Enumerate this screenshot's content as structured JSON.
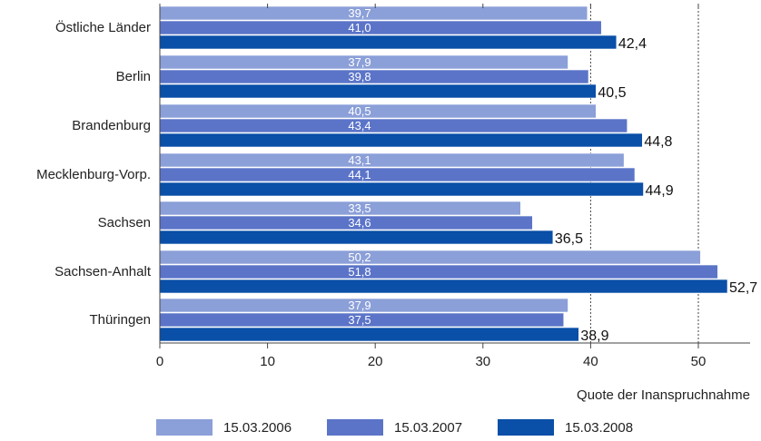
{
  "chart_data": {
    "type": "bar",
    "orientation": "horizontal",
    "categories": [
      "Östliche Länder",
      "Berlin",
      "Brandenburg",
      "Mecklenburg-Vorp.",
      "Sachsen",
      "Sachsen-Anhalt",
      "Thüringen"
    ],
    "series": [
      {
        "name": "15.03.2006",
        "values": [
          39.7,
          37.9,
          40.5,
          43.1,
          33.5,
          50.2,
          37.9
        ],
        "labels": [
          "39,7",
          "37,9",
          "40,5",
          "43,1",
          "33,5",
          "50,2",
          "37,9"
        ],
        "color": "#8b9fd8"
      },
      {
        "name": "15.03.2007",
        "values": [
          41.0,
          39.8,
          43.4,
          44.1,
          34.6,
          51.8,
          37.5
        ],
        "labels": [
          "41,0",
          "39,8",
          "43,4",
          "44,1",
          "34,6",
          "51,8",
          "37,5"
        ],
        "color": "#5b74c8"
      },
      {
        "name": "15.03.2008",
        "values": [
          42.4,
          40.5,
          44.8,
          44.9,
          36.5,
          52.7,
          38.9
        ],
        "labels": [
          "42,4",
          "40,5",
          "44,8",
          "44,9",
          "36,5",
          "52,7",
          "38,9"
        ],
        "color": "#0a4fa8"
      }
    ],
    "xlabel": "Quote der Inanspruchnahme",
    "xlim": [
      0,
      55
    ],
    "xticks": [
      0,
      10,
      20,
      30,
      40,
      50
    ],
    "reference_lines": [
      40,
      50
    ],
    "legend_position": "bottom"
  }
}
